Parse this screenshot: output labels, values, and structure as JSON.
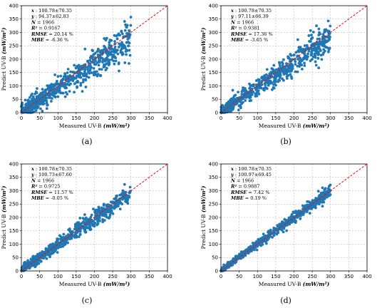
{
  "chart_data": [
    {
      "type": "scatter",
      "panel_label": "(a)",
      "xlabel_prefix": "Measured UV-B ",
      "xlabel_unit": "(mW/m²)",
      "ylabel_prefix": "Predict UV-B ",
      "ylabel_unit": "(mW/m²)",
      "xlim": [
        0,
        400
      ],
      "ylim": [
        0,
        400
      ],
      "xticks": [
        0,
        50,
        100,
        150,
        200,
        250,
        300,
        350,
        400
      ],
      "yticks": [
        0,
        50,
        100,
        150,
        200,
        250,
        300,
        350,
        400
      ],
      "xtick_labels": [
        "0",
        "50",
        "100",
        "150",
        "200",
        "250",
        "300",
        "350",
        "400"
      ],
      "ytick_labels": [
        "0",
        "50",
        "100",
        "150",
        "200",
        "250",
        "300",
        "350",
        "400"
      ],
      "grid": true,
      "reference_line": "y = x",
      "stats": [
        {
          "key": "x",
          "sep": " : ",
          "value": "100.78±70.35"
        },
        {
          "key": "y",
          "sep": " : ",
          "value": "94.37±62.83"
        },
        {
          "key": "N",
          "sep": " = ",
          "value": "1966"
        },
        {
          "key": "R²",
          "sep": " = ",
          "value": "0.9167"
        },
        {
          "key": "RMSE",
          "sep": " = ",
          "value": "20.14 %"
        },
        {
          "key": "MBE",
          "sep": " = ",
          "value": "-6.36 %"
        }
      ],
      "mean_x": 100.78,
      "sd_x": 70.35,
      "mean_y": 94.37,
      "sd_y": 62.83,
      "n": 1966,
      "r2": 0.9167,
      "rmse_pct": 20.14,
      "mbe_pct": -6.36,
      "point_color": "#1f77b4",
      "line_color": "#ff0000",
      "x_max": 300,
      "spread": 22,
      "slope": 0.9,
      "intercept": 3
    },
    {
      "type": "scatter",
      "panel_label": "(b)",
      "xlabel_prefix": "Measured UV-B ",
      "xlabel_unit": "(mW/m²)",
      "ylabel_prefix": "Predict UV-B ",
      "ylabel_unit": "(mW/m²)",
      "xlim": [
        0,
        400
      ],
      "ylim": [
        0,
        400
      ],
      "xticks": [
        0,
        50,
        100,
        150,
        200,
        250,
        300,
        350,
        400
      ],
      "yticks": [
        0,
        50,
        100,
        150,
        200,
        250,
        300,
        350,
        400
      ],
      "xtick_labels": [
        "0",
        "50",
        "100",
        "150",
        "200",
        "250",
        "300",
        "350",
        "400"
      ],
      "ytick_labels": [
        "0",
        "50",
        "100",
        "150",
        "200",
        "250",
        "300",
        "350",
        "400"
      ],
      "grid": true,
      "reference_line": "y = x",
      "stats": [
        {
          "key": "x",
          "sep": " : ",
          "value": "100.78±70.35"
        },
        {
          "key": "y",
          "sep": " : ",
          "value": "97.11±66.39"
        },
        {
          "key": "N",
          "sep": " = ",
          "value": "1966"
        },
        {
          "key": "R²",
          "sep": " = ",
          "value": "0.9381"
        },
        {
          "key": "RMSE",
          "sep": " = ",
          "value": "17.36 %"
        },
        {
          "key": "MBE",
          "sep": " = ",
          "value": "-3.65 %"
        }
      ],
      "mean_x": 100.78,
      "sd_x": 70.35,
      "mean_y": 97.11,
      "sd_y": 66.39,
      "n": 1966,
      "r2": 0.9381,
      "rmse_pct": 17.36,
      "mbe_pct": -3.65,
      "point_color": "#1f77b4",
      "line_color": "#ff0000",
      "x_max": 300,
      "spread": 18,
      "slope": 0.94,
      "intercept": 2
    },
    {
      "type": "scatter",
      "panel_label": "(c)",
      "xlabel_prefix": "Measured UV-B ",
      "xlabel_unit": "(mW/m²)",
      "ylabel_prefix": "Predict UV-B ",
      "ylabel_unit": "(mW/m²)",
      "xlim": [
        0,
        400
      ],
      "ylim": [
        0,
        400
      ],
      "xticks": [
        0,
        50,
        100,
        150,
        200,
        250,
        300,
        350,
        400
      ],
      "yticks": [
        0,
        50,
        100,
        150,
        200,
        250,
        300,
        350,
        400
      ],
      "xtick_labels": [
        "0",
        "50",
        "100",
        "150",
        "200",
        "250",
        "300",
        "350",
        "400"
      ],
      "ytick_labels": [
        "0",
        "50",
        "100",
        "150",
        "200",
        "250",
        "300",
        "350",
        "400"
      ],
      "grid": true,
      "reference_line": "y = x",
      "stats": [
        {
          "key": "x",
          "sep": " : ",
          "value": "100.78±70.35"
        },
        {
          "key": "y",
          "sep": " : ",
          "value": "100.73±67.60"
        },
        {
          "key": "N",
          "sep": " = ",
          "value": "1966"
        },
        {
          "key": "R²",
          "sep": " = ",
          "value": "0.9725"
        },
        {
          "key": "RMSE",
          "sep": " = ",
          "value": "11.57 %"
        },
        {
          "key": "MBE",
          "sep": " = ",
          "value": "-0.05 %"
        }
      ],
      "mean_x": 100.78,
      "sd_x": 70.35,
      "mean_y": 100.73,
      "sd_y": 67.6,
      "n": 1966,
      "r2": 0.9725,
      "rmse_pct": 11.57,
      "mbe_pct": -0.05,
      "point_color": "#1f77b4",
      "line_color": "#ff0000",
      "x_max": 300,
      "spread": 12,
      "slope": 0.97,
      "intercept": 3
    },
    {
      "type": "scatter",
      "panel_label": "(d)",
      "xlabel_prefix": "Measured UV-B ",
      "xlabel_unit": "(mW/m²)",
      "ylabel_prefix": "Predict UV-B ",
      "ylabel_unit": "(mW/m²)",
      "xlim": [
        0,
        400
      ],
      "ylim": [
        0,
        400
      ],
      "xticks": [
        0,
        50,
        100,
        150,
        200,
        250,
        300,
        350,
        400
      ],
      "yticks": [
        0,
        50,
        100,
        150,
        200,
        250,
        300,
        350,
        400
      ],
      "xtick_labels": [
        "0",
        "50",
        "100",
        "150",
        "200",
        "250",
        "300",
        "350",
        "400"
      ],
      "ytick_labels": [
        "0",
        "50",
        "100",
        "150",
        "200",
        "250",
        "300",
        "350",
        "400"
      ],
      "grid": true,
      "reference_line": "y = x",
      "stats": [
        {
          "key": "x",
          "sep": " : ",
          "value": "100.78±70.35"
        },
        {
          "key": "y",
          "sep": " : ",
          "value": "100.97±69.45"
        },
        {
          "key": "N",
          "sep": " = ",
          "value": "1966"
        },
        {
          "key": "R²",
          "sep": " = ",
          "value": "0.9887"
        },
        {
          "key": "RMSE",
          "sep": " = ",
          "value": "7.42 %"
        },
        {
          "key": "MBE",
          "sep": " = ",
          "value": "0.19 %"
        }
      ],
      "mean_x": 100.78,
      "sd_x": 70.35,
      "mean_y": 100.97,
      "sd_y": 69.45,
      "n": 1966,
      "r2": 0.9887,
      "rmse_pct": 7.42,
      "mbe_pct": 0.19,
      "point_color": "#1f77b4",
      "line_color": "#ff0000",
      "x_max": 300,
      "spread": 7.5,
      "slope": 0.99,
      "intercept": 1.5
    }
  ]
}
